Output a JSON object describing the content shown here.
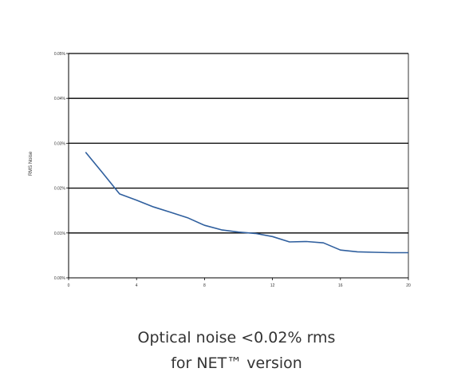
{
  "chart_data": {
    "type": "line",
    "ylabel": "RMS Noise",
    "xlabel": "",
    "xlim": [
      0,
      20
    ],
    "ylim": [
      0,
      0.05
    ],
    "x_ticks": [
      0,
      4,
      8,
      12,
      16,
      20
    ],
    "x_tick_labels": [
      "0",
      "4",
      "8",
      "12",
      "16",
      "20"
    ],
    "y_ticks": [
      0,
      0.01,
      0.02,
      0.03,
      0.04,
      0.05
    ],
    "y_tick_labels": [
      "0.00%",
      "0.01%",
      "0.02%",
      "0.03%",
      "0.04%",
      "0.05%"
    ],
    "grid": "horizontal",
    "line_color": "#2f5f9e",
    "series": [
      {
        "x": [
          1,
          2,
          3,
          4,
          5,
          6,
          7,
          8,
          9,
          10,
          11,
          12,
          13,
          14,
          15,
          16,
          17,
          18,
          19,
          20
        ],
        "values": [
          0.028,
          0.0234,
          0.0187,
          0.0173,
          0.0158,
          0.0146,
          0.0134,
          0.0117,
          0.0107,
          0.0102,
          0.0099,
          0.0092,
          0.008,
          0.0081,
          0.0078,
          0.0062,
          0.0058,
          0.0057,
          0.0056,
          0.0056
        ]
      }
    ]
  },
  "caption": {
    "line1": "Optical noise <0.02% rms",
    "line2": "for NET™ version"
  }
}
